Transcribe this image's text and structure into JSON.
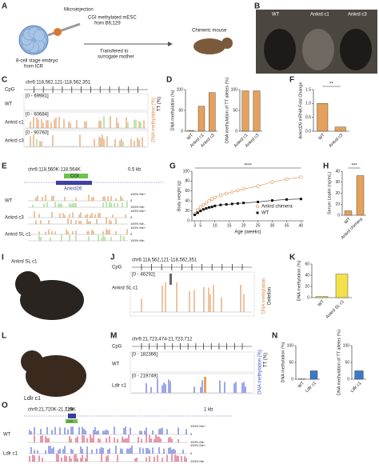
{
  "panel_letters": [
    "A",
    "B",
    "C",
    "D",
    "E",
    "F",
    "G",
    "H",
    "I",
    "J",
    "K",
    "L",
    "M",
    "N",
    "O"
  ],
  "panel_A": {
    "step1": "Microinjection",
    "cells": [
      "CGI methylated mESC",
      "from B6;129"
    ],
    "embryo": [
      "8-cell stage embryo",
      "from ICR"
    ],
    "transfer": [
      "Transfered to",
      "surrogate mother"
    ],
    "result": "Chimeric mouse"
  },
  "panel_B": {
    "labels": [
      "WT",
      "Ankrd c1",
      "Ankrd c3"
    ]
  },
  "panel_C": {
    "locus": "chr6:118,562,121-118,562,351",
    "cpg": "CpG",
    "tracks": [
      {
        "name": "WT",
        "range": "[0 - 69981]"
      },
      {
        "name": "Ankrd c1",
        "range": "[0 - 60684]"
      },
      {
        "name": "Ankrd c3",
        "range": "[0 - 90760]"
      }
    ],
    "axis": [
      "DNA methylation (%)",
      "TT (%)"
    ]
  },
  "panel_E": {
    "locus": "chr6:118,560K-118,564K",
    "scale": "0.5 kb",
    "cgi": "CGI",
    "gene": "Ankrd26",
    "tracks": [
      "WT",
      "Ankrd c3",
      "Ankrd SL c1"
    ],
    "levels": [
      "100% Me+",
      "0",
      "100% Me-"
    ]
  },
  "panel_I": {
    "label": "Ankrd SL c1"
  },
  "panel_J": {
    "locus": "chr6:118,562,121-118,562,351",
    "cpg": "CpG",
    "range": "[0 - 46292]",
    "name": "Ankrd SL c1",
    "axis": [
      "DNA methylation",
      "Deletion"
    ]
  },
  "panel_L": {
    "label": "Ldlr c1"
  },
  "panel_M": {
    "locus": "chr9:21,723,474-21,723,712",
    "cpg": "CpG",
    "tracks": [
      {
        "name": "WT",
        "range": "[0 - 182366]"
      },
      {
        "name": "Ldlr c1",
        "range": "[0 - 219749]"
      }
    ],
    "axis": [
      "DNA methylation (%)",
      "TT (%)"
    ]
  },
  "panel_O": {
    "locus": "chr9:21,720K-21,729K",
    "scale": "1 kb",
    "gene": "Ldlr",
    "cgi": "CGI",
    "tracks": [
      "WT",
      "Ldlr c1"
    ],
    "levels": [
      "100% Me+",
      "0",
      "100% Me-"
    ]
  },
  "chart_data": [
    {
      "type": "bar",
      "ylabel": "DNA methylation (%)",
      "categories": [
        "WT",
        "Ankrd c1",
        "Ankrd c3"
      ],
      "values": [
        2,
        60,
        93
      ],
      "color": "#e3a15b",
      "ylim": [
        0,
        100
      ],
      "yticks": [
        0,
        50,
        100
      ]
    },
    {
      "type": "bar",
      "ylabel": "DNA methylation of TT alleles (%)",
      "categories": [
        "Ankrd c1",
        "Ankrd c3"
      ],
      "values": [
        97,
        97
      ],
      "color": "#e3a15b",
      "ylim": [
        0,
        100
      ],
      "yticks": [
        0,
        50,
        100
      ]
    },
    {
      "type": "bar",
      "ylabel": "Ankrd26 mRNA Fold Change",
      "categories": [
        "WT",
        "Ankrd c3"
      ],
      "values": [
        1.0,
        0.15
      ],
      "color": "#e3a15b",
      "ylim": [
        0,
        1.5
      ],
      "yticks": [
        {
          "value": 0,
          "label": "0.0"
        },
        {
          "value": 0.5,
          "label": "0.5"
        },
        {
          "value": 1,
          "label": "1.0"
        },
        {
          "value": 1.5,
          "label": "1.5"
        }
      ],
      "annotation": "**"
    },
    {
      "type": "line",
      "ylabel": "Body weight (g)",
      "xlabel": "Age (weeks)",
      "x": [
        3,
        4,
        5,
        6,
        7,
        8,
        9,
        10,
        12,
        14,
        16,
        18,
        20,
        25,
        30,
        35,
        40
      ],
      "series": [
        {
          "name": "Ankrd chimera",
          "color": "#d98a45",
          "values": [
            14,
            22,
            28,
            32,
            36,
            40,
            44,
            47,
            52,
            55,
            58,
            61,
            64,
            70,
            78,
            84,
            88
          ]
        },
        {
          "name": "WT",
          "color": "#111111",
          "values": [
            12,
            16,
            20,
            23,
            25,
            27,
            28,
            30,
            32,
            33,
            34,
            35,
            36,
            38,
            41,
            43,
            44
          ]
        }
      ],
      "xlim": [
        2,
        41
      ],
      "xticks": [
        3,
        5,
        10,
        15,
        20,
        25,
        30,
        35,
        40
      ],
      "ylim": [
        0,
        100
      ],
      "yticks": [
        0,
        20,
        40,
        60,
        80,
        100
      ],
      "annotation": "****",
      "legend": "lower right"
    },
    {
      "type": "bar",
      "ylabel": "Serum Leptin (ng/mL)",
      "categories": [
        "WT",
        "Ankrd chimera"
      ],
      "values": [
        4,
        36
      ],
      "color": "#e3a15b",
      "ylim": [
        0,
        40
      ],
      "yticks": [
        0,
        10,
        20,
        30,
        40
      ],
      "annotation": "***"
    },
    {
      "type": "bar",
      "ylabel": "DNA methylation (%)",
      "categories": [
        "WT",
        "Ankrd SL c1"
      ],
      "values": [
        2,
        42
      ],
      "color": "#f3e04a",
      "ylim": [
        0,
        60
      ],
      "yticks": [
        0,
        20,
        40,
        60
      ]
    },
    {
      "type": "bar",
      "ylabel": "DNA methylation (%)",
      "categories": [
        "WT",
        "Ldlr c1"
      ],
      "values": [
        1,
        25
      ],
      "color": "#3a78c9",
      "ylim": [
        0,
        100
      ],
      "yticks": [
        0,
        50,
        100
      ]
    },
    {
      "type": "bar",
      "ylabel": "DNA methylation of TT alleles (%)",
      "categories": [
        "Ldlr c1"
      ],
      "values": [
        25
      ],
      "color": "#3a78c9",
      "ylim": [
        0,
        100
      ],
      "yticks": [
        0,
        50,
        100
      ]
    }
  ]
}
